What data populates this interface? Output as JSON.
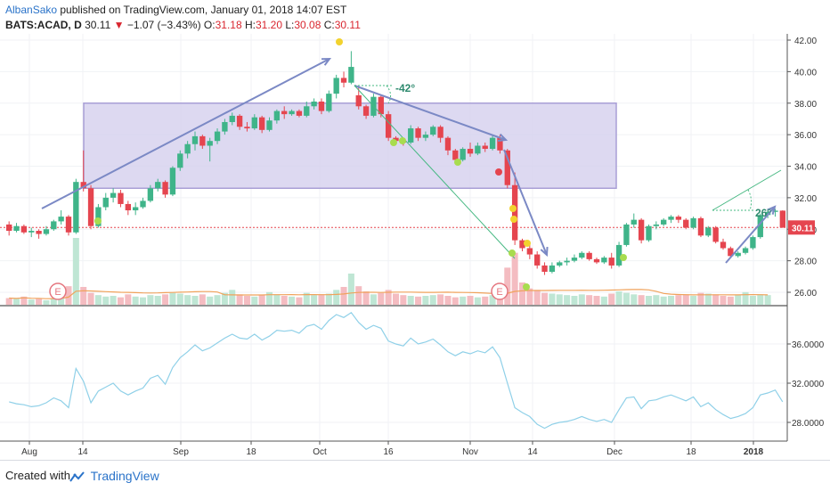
{
  "header": {
    "author": "AlbanSako",
    "published_text": " published on TradingView.com, January 01, 2018 14:07 EST",
    "ticker": "BATS:ACAD, D",
    "last": "30.11",
    "change": "−1.07 (−3.43%)",
    "o_label": "O:",
    "o": "31.18",
    "h_label": "H:",
    "h": "31.20",
    "l_label": "L:",
    "l": "30.08",
    "c_label": "C:",
    "c": "30.11"
  },
  "footer": {
    "created_with": "Created with",
    "brand": "TradingView"
  },
  "colors": {
    "up": "#3fb489",
    "down": "#e5454f",
    "rsi": "#8fd0e8",
    "channel": "#a99fd6",
    "trend_arrow": "#7b89c5",
    "angle_line": "#46b882",
    "price_line": "#e5454f",
    "earnings": "#e5767f",
    "signal_yellow": "#f2d22e",
    "signal_green": "#a8dc4f"
  },
  "chart_data": [
    {
      "type": "candlestick",
      "y_range": [
        25,
        42
      ],
      "y_ticks": [
        "42.00",
        "40.00",
        "38.00",
        "36.00",
        "34.00",
        "32.00",
        "30.00",
        "28.00",
        "26.00"
      ],
      "last_price_label": "30.11",
      "x_ticks": [
        "Aug",
        "14",
        "Sep",
        "18",
        "Oct",
        "16",
        "Nov",
        "14",
        "Dec",
        "18",
        "2018"
      ],
      "ohlc": [
        [
          30.3,
          30.5,
          29.6,
          29.9
        ],
        [
          29.9,
          30.4,
          29.8,
          30.2
        ],
        [
          30.2,
          30.3,
          29.7,
          29.8
        ],
        [
          29.8,
          30.1,
          29.5,
          29.9
        ],
        [
          29.9,
          30.0,
          29.4,
          29.7
        ],
        [
          29.7,
          30.2,
          29.6,
          30.0
        ],
        [
          30.0,
          30.6,
          29.9,
          30.5
        ],
        [
          30.5,
          31.2,
          30.3,
          30.8
        ],
        [
          30.8,
          30.9,
          29.6,
          29.8
        ],
        [
          29.8,
          33.2,
          29.7,
          33.0
        ],
        [
          33.0,
          35.0,
          32.4,
          32.6
        ],
        [
          32.6,
          32.8,
          30.0,
          30.2
        ],
        [
          30.2,
          31.6,
          30.1,
          31.4
        ],
        [
          31.4,
          32.3,
          31.2,
          32.0
        ],
        [
          32.0,
          32.6,
          31.7,
          32.3
        ],
        [
          32.3,
          32.5,
          31.4,
          31.6
        ],
        [
          31.6,
          31.8,
          30.9,
          31.2
        ],
        [
          31.2,
          31.7,
          30.9,
          31.4
        ],
        [
          31.4,
          32.0,
          31.3,
          31.8
        ],
        [
          31.8,
          32.8,
          31.7,
          32.6
        ],
        [
          32.6,
          33.2,
          32.4,
          33.0
        ],
        [
          33.0,
          33.1,
          32.0,
          32.2
        ],
        [
          32.2,
          34.0,
          32.1,
          33.9
        ],
        [
          33.9,
          35.0,
          33.7,
          34.8
        ],
        [
          34.8,
          35.6,
          34.5,
          35.4
        ],
        [
          35.4,
          36.2,
          35.0,
          35.9
        ],
        [
          35.9,
          36.0,
          35.1,
          35.3
        ],
        [
          35.3,
          35.8,
          34.3,
          35.6
        ],
        [
          35.6,
          36.4,
          35.4,
          36.2
        ],
        [
          36.2,
          37.0,
          36.0,
          36.8
        ],
        [
          36.8,
          37.4,
          36.6,
          37.2
        ],
        [
          37.2,
          37.3,
          36.3,
          36.5
        ],
        [
          36.5,
          36.8,
          36.2,
          36.4
        ],
        [
          36.4,
          37.3,
          36.3,
          37.1
        ],
        [
          37.1,
          37.2,
          36.1,
          36.3
        ],
        [
          36.3,
          37.1,
          36.2,
          36.9
        ],
        [
          36.9,
          37.6,
          36.7,
          37.5
        ],
        [
          37.5,
          37.8,
          37.0,
          37.3
        ],
        [
          37.3,
          37.6,
          37.2,
          37.5
        ],
        [
          37.5,
          37.6,
          37.1,
          37.2
        ],
        [
          37.2,
          38.1,
          37.1,
          37.8
        ],
        [
          37.8,
          38.3,
          37.6,
          38.1
        ],
        [
          38.1,
          38.3,
          37.3,
          37.5
        ],
        [
          37.5,
          38.8,
          37.4,
          38.6
        ],
        [
          38.6,
          39.8,
          38.3,
          39.6
        ],
        [
          39.6,
          40.0,
          39.0,
          39.3
        ],
        [
          39.3,
          41.3,
          39.2,
          40.3
        ],
        [
          38.5,
          39.0,
          37.6,
          37.8
        ],
        [
          37.8,
          37.9,
          37.0,
          37.2
        ],
        [
          37.2,
          38.6,
          37.1,
          38.4
        ],
        [
          38.4,
          38.5,
          37.1,
          37.3
        ],
        [
          37.3,
          37.5,
          35.6,
          35.8
        ],
        [
          35.8,
          35.9,
          35.4,
          35.6
        ],
        [
          35.6,
          35.8,
          35.3,
          35.5
        ],
        [
          35.5,
          36.6,
          35.4,
          36.4
        ],
        [
          36.4,
          36.5,
          35.6,
          35.8
        ],
        [
          35.8,
          36.2,
          35.6,
          36.0
        ],
        [
          36.0,
          36.6,
          35.9,
          36.5
        ],
        [
          36.5,
          36.6,
          35.5,
          35.8
        ],
        [
          35.8,
          35.9,
          34.7,
          35.0
        ],
        [
          35.0,
          35.1,
          34.2,
          34.4
        ],
        [
          34.4,
          35.2,
          34.3,
          35.1
        ],
        [
          35.1,
          35.5,
          34.6,
          34.8
        ],
        [
          34.8,
          35.5,
          34.7,
          35.3
        ],
        [
          35.3,
          35.5,
          34.9,
          35.1
        ],
        [
          35.1,
          36.0,
          35.0,
          35.8
        ],
        [
          35.8,
          36.0,
          34.8,
          35.0
        ],
        [
          35.0,
          35.1,
          32.6,
          32.8
        ],
        [
          32.8,
          33.6,
          29.0,
          29.3
        ],
        [
          29.3,
          29.4,
          28.6,
          28.8
        ],
        [
          28.8,
          29.0,
          28.1,
          28.4
        ],
        [
          28.4,
          28.6,
          27.5,
          27.7
        ],
        [
          27.7,
          27.9,
          27.1,
          27.3
        ],
        [
          27.3,
          27.9,
          27.2,
          27.7
        ],
        [
          27.7,
          28.0,
          27.6,
          27.9
        ],
        [
          27.9,
          28.2,
          27.7,
          28.0
        ],
        [
          28.0,
          28.4,
          27.9,
          28.2
        ],
        [
          28.2,
          28.6,
          28.1,
          28.5
        ],
        [
          28.5,
          28.6,
          28.0,
          28.1
        ],
        [
          28.1,
          28.2,
          27.8,
          27.9
        ],
        [
          27.9,
          28.3,
          27.8,
          28.2
        ],
        [
          28.2,
          28.5,
          27.5,
          27.7
        ],
        [
          27.7,
          29.2,
          27.6,
          29.0
        ],
        [
          29.0,
          30.4,
          28.9,
          30.3
        ],
        [
          30.3,
          31.0,
          30.1,
          30.6
        ],
        [
          30.6,
          30.7,
          29.1,
          29.3
        ],
        [
          29.3,
          30.3,
          29.2,
          30.2
        ],
        [
          30.2,
          30.5,
          30.0,
          30.3
        ],
        [
          30.3,
          30.7,
          30.2,
          30.6
        ],
        [
          30.6,
          30.9,
          30.4,
          30.8
        ],
        [
          30.8,
          30.9,
          30.4,
          30.6
        ],
        [
          30.6,
          30.7,
          30.0,
          30.1
        ],
        [
          30.1,
          30.8,
          30.0,
          30.7
        ],
        [
          30.7,
          30.8,
          29.5,
          29.6
        ],
        [
          29.6,
          30.2,
          29.5,
          30.1
        ],
        [
          30.1,
          30.2,
          29.1,
          29.2
        ],
        [
          29.2,
          29.4,
          28.7,
          28.8
        ],
        [
          28.8,
          28.9,
          28.2,
          28.3
        ],
        [
          28.3,
          28.6,
          28.2,
          28.5
        ],
        [
          28.5,
          28.9,
          28.4,
          28.8
        ],
        [
          28.8,
          29.6,
          28.7,
          29.5
        ],
        [
          29.5,
          31.0,
          29.4,
          30.9
        ],
        [
          30.9,
          31.3,
          30.7,
          31.1
        ],
        [
          31.1,
          31.3,
          30.8,
          31.18
        ],
        [
          31.18,
          31.2,
          30.08,
          30.11
        ]
      ],
      "volume": [
        0.9,
        0.8,
        1.1,
        0.7,
        0.8,
        0.6,
        0.9,
        1.0,
        2.5,
        9.0,
        2.4,
        1.6,
        1.3,
        1.1,
        1.2,
        1.0,
        1.4,
        1.1,
        1.0,
        1.3,
        1.2,
        1.4,
        1.6,
        1.5,
        1.3,
        1.2,
        1.4,
        1.1,
        1.3,
        1.6,
        2.0,
        1.4,
        1.2,
        1.1,
        1.3,
        1.7,
        1.4,
        1.2,
        1.1,
        1.0,
        1.6,
        1.3,
        1.4,
        1.5,
        2.0,
        2.4,
        4.2,
        2.5,
        1.8,
        1.4,
        1.6,
        2.0,
        1.5,
        1.3,
        1.2,
        1.1,
        1.2,
        1.3,
        1.4,
        1.2,
        1.0,
        1.1,
        1.2,
        1.0,
        1.1,
        1.3,
        2.2,
        5.0,
        7.0,
        3.0,
        2.2,
        2.0,
        1.6,
        1.5,
        1.4,
        1.3,
        1.2,
        1.4,
        1.3,
        1.2,
        1.1,
        1.5,
        1.8,
        1.6,
        1.4,
        1.3,
        1.2,
        1.3,
        1.1,
        1.2,
        1.3,
        1.4,
        1.2,
        1.6,
        1.5,
        1.4,
        1.2,
        1.1,
        1.3,
        1.7,
        1.2,
        1.4,
        1.3
      ],
      "earnings_marks": [
        {
          "index": 10,
          "label": "E"
        },
        {
          "index": 68,
          "label": "E"
        }
      ]
    },
    {
      "type": "line",
      "y_range": [
        25.5,
        39.5
      ],
      "y_ticks": [
        "36.0000",
        "32.0000",
        "28.0000"
      ],
      "values": [
        30.1,
        29.9,
        29.8,
        29.6,
        29.7,
        30.0,
        30.5,
        30.2,
        29.5,
        33.5,
        32.2,
        30.0,
        31.2,
        31.6,
        32.0,
        31.2,
        30.8,
        31.2,
        31.5,
        32.5,
        32.8,
        31.9,
        33.6,
        34.6,
        35.2,
        35.9,
        35.3,
        35.6,
        36.1,
        36.6,
        37.0,
        36.6,
        36.5,
        37.0,
        36.4,
        36.8,
        37.4,
        37.3,
        37.4,
        37.1,
        37.8,
        38.0,
        37.5,
        38.4,
        39.0,
        38.7,
        39.2,
        38.2,
        37.5,
        37.9,
        37.6,
        36.3,
        36.0,
        35.8,
        36.6,
        36.0,
        36.2,
        36.5,
        35.9,
        35.2,
        34.8,
        35.2,
        35.0,
        35.3,
        35.1,
        35.7,
        34.6,
        32.0,
        29.5,
        29.0,
        28.6,
        27.8,
        27.4,
        27.8,
        28.0,
        28.1,
        28.3,
        28.6,
        28.3,
        28.1,
        28.3,
        28.0,
        29.3,
        30.5,
        30.6,
        29.4,
        30.2,
        30.3,
        30.6,
        30.8,
        30.5,
        30.2,
        30.6,
        29.6,
        30.0,
        29.3,
        28.8,
        28.4,
        28.6,
        28.9,
        29.5,
        30.8,
        31.0,
        31.3,
        30.1
      ]
    }
  ]
}
